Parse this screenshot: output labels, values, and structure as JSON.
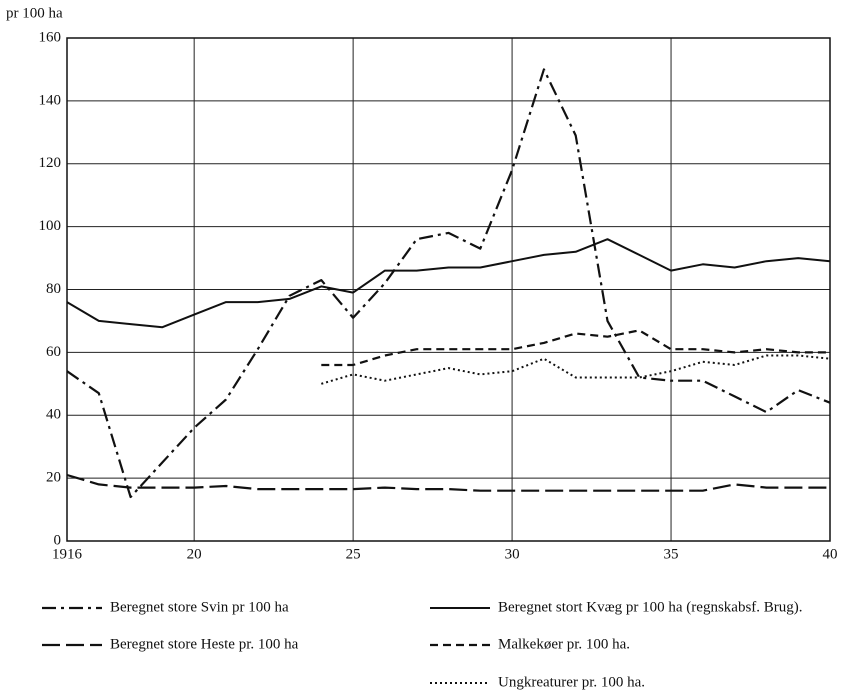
{
  "chart_data": {
    "type": "line",
    "y_label": "pr 100 ha",
    "x": [
      1916,
      1917,
      1918,
      1919,
      1920,
      1921,
      1922,
      1923,
      1924,
      1925,
      1926,
      1927,
      1928,
      1929,
      1930,
      1931,
      1932,
      1933,
      1934,
      1935,
      1936,
      1937,
      1938,
      1939,
      1940
    ],
    "xlim": [
      1916,
      1940
    ],
    "xticks": [
      1916,
      {
        "value": 1920,
        "label": "20"
      },
      {
        "value": 1925,
        "label": "25"
      },
      {
        "value": 1930,
        "label": "30"
      },
      {
        "value": 1935,
        "label": "35"
      },
      {
        "value": 1940,
        "label": "40"
      }
    ],
    "ylim": [
      0,
      160
    ],
    "yticks": [
      0,
      20,
      40,
      60,
      80,
      100,
      120,
      140,
      160
    ],
    "grid": true,
    "series": [
      {
        "name": "Beregnet store Svin pr 100 ha",
        "color": "#111",
        "dash": "dash-dot",
        "values": [
          54,
          47,
          14,
          25,
          36,
          45,
          61,
          78,
          83,
          71,
          82,
          96,
          98,
          93,
          118,
          150,
          129,
          70,
          52,
          51,
          51,
          46,
          41,
          48,
          44
        ]
      },
      {
        "name": "Beregnet stort Kvæg pr 100 ha (regnskabsf. Brug).",
        "color": "#111",
        "dash": "solid",
        "values": [
          76,
          70,
          69,
          68,
          72,
          76,
          76,
          77,
          81,
          79,
          86,
          86,
          87,
          87,
          89,
          91,
          92,
          96,
          91,
          86,
          88,
          87,
          89,
          90,
          89
        ]
      },
      {
        "name": "Beregnet store Heste pr. 100 ha",
        "color": "#111",
        "dash": "long-dash",
        "values": [
          21,
          18,
          17,
          17,
          17,
          17.5,
          16.5,
          16.5,
          16.5,
          16.5,
          17,
          16.5,
          16.5,
          16,
          16,
          16,
          16,
          16,
          16,
          16,
          16,
          18,
          17,
          17,
          17
        ]
      },
      {
        "name": "Malkekøer pr. 100 ha.",
        "color": "#111",
        "dash": "short-dash",
        "values": [
          null,
          null,
          null,
          null,
          null,
          null,
          null,
          null,
          56,
          56,
          59,
          61,
          61,
          61,
          61,
          63,
          66,
          65,
          67,
          61,
          61,
          60,
          61,
          60,
          60
        ]
      },
      {
        "name": "Ungkreaturer pr. 100 ha.",
        "color": "#111",
        "dash": "dotted",
        "values": [
          null,
          null,
          null,
          null,
          null,
          null,
          null,
          null,
          50,
          53,
          51,
          53,
          55,
          53,
          54,
          58,
          52,
          52,
          52,
          54,
          57,
          56,
          59,
          59,
          58
        ]
      }
    ]
  }
}
